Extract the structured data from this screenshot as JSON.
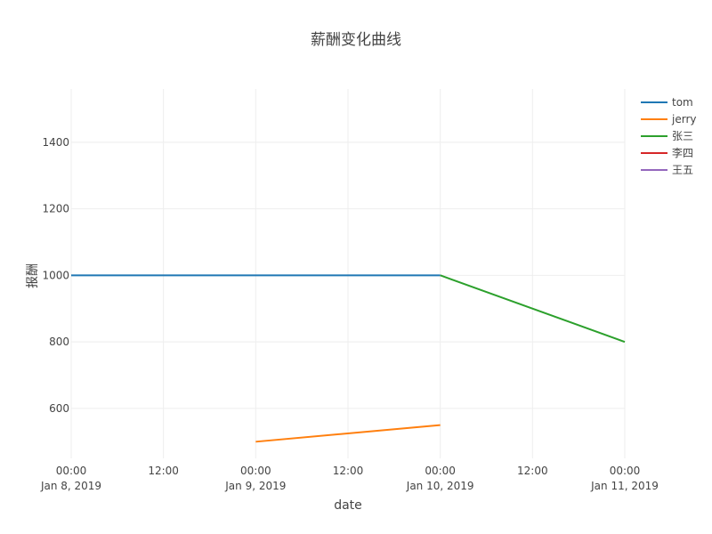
{
  "chart_data": {
    "type": "line",
    "title": "薪酬变化曲线",
    "xlabel": "date",
    "ylabel": "报酬",
    "x_range": [
      "2019-01-08 00:00",
      "2019-01-11 00:00"
    ],
    "ylim": [
      450,
      1560
    ],
    "x_ticks": [
      {
        "x": "2019-01-08 00:00",
        "line1": "00:00",
        "line2": "Jan 8, 2019"
      },
      {
        "x": "2019-01-08 12:00",
        "line1": "12:00",
        "line2": ""
      },
      {
        "x": "2019-01-09 00:00",
        "line1": "00:00",
        "line2": "Jan 9, 2019"
      },
      {
        "x": "2019-01-09 12:00",
        "line1": "12:00",
        "line2": ""
      },
      {
        "x": "2019-01-10 00:00",
        "line1": "00:00",
        "line2": "Jan 10, 2019"
      },
      {
        "x": "2019-01-10 12:00",
        "line1": "12:00",
        "line2": ""
      },
      {
        "x": "2019-01-11 00:00",
        "line1": "00:00",
        "line2": "Jan 11, 2019"
      }
    ],
    "y_ticks": [
      600,
      800,
      1000,
      1200,
      1400
    ],
    "grid": true,
    "legend_position": "top-right",
    "series": [
      {
        "name": "tom",
        "color": "#1f77b4",
        "points": [
          {
            "x": "2019-01-08 00:00",
            "y": 1000
          },
          {
            "x": "2019-01-10 00:00",
            "y": 1000
          }
        ]
      },
      {
        "name": "jerry",
        "color": "#ff7f0e",
        "points": [
          {
            "x": "2019-01-09 00:00",
            "y": 500
          },
          {
            "x": "2019-01-10 00:00",
            "y": 550
          }
        ]
      },
      {
        "name": "张三",
        "color": "#2ca02c",
        "points": [
          {
            "x": "2019-01-10 00:00",
            "y": 1000
          },
          {
            "x": "2019-01-11 00:00",
            "y": 800
          }
        ]
      },
      {
        "name": "李四",
        "color": "#d62728",
        "points": []
      },
      {
        "name": "王五",
        "color": "#9467bd",
        "points": []
      }
    ]
  }
}
